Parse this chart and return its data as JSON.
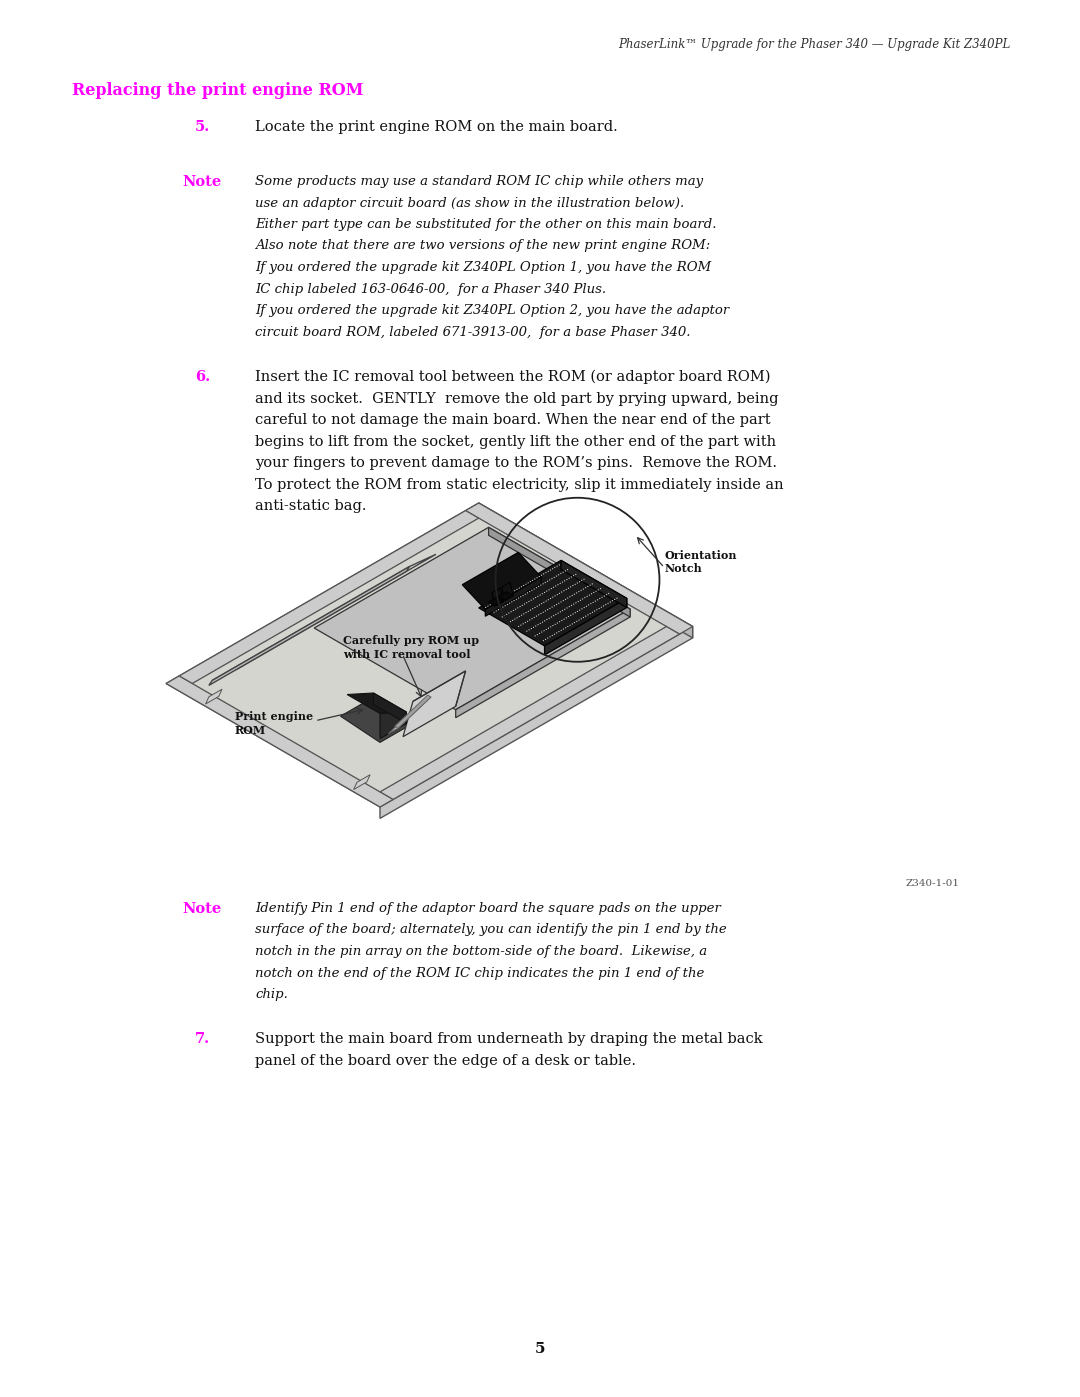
{
  "page_width": 10.8,
  "page_height": 13.97,
  "bg_color": "#ffffff",
  "header_text": "PhaserLink™ Upgrade for the Phaser 340 — Upgrade Kit Z340PL",
  "section_title": "Replacing the print engine ROM",
  "section_title_color": "#FF00FF",
  "step5_num": "5.",
  "step5_num_color": "#FF00FF",
  "step5_text": "Locate the print engine ROM on the main board.",
  "note1_label": "Note",
  "note1_label_color": "#FF00FF",
  "note1_lines": [
    "Some products may use a standard ROM IC chip while others may",
    "use an adaptor circuit board (as show in the illustration below).",
    "Either part type can be substituted for the other on this main board.",
    "Also note that there are two versions of the new print engine ROM:",
    "If you ordered the upgrade kit Z340PL Option 1, you have the ROM",
    "IC chip labeled 163-0646-00,  for a Phaser 340 Plus.",
    "If you ordered the upgrade kit Z340PL Option 2, you have the adaptor",
    "circuit board ROM, labeled 671-3913-00,  for a base Phaser 340."
  ],
  "step6_num": "6.",
  "step6_num_color": "#FF00FF",
  "step6_lines": [
    "Insert the IC removal tool between the ROM (or adaptor board ROM)",
    "and its socket.  GENTLY  remove the old part by prying upward, being",
    "careful to not damage the main board. When the near end of the part",
    "begins to lift from the socket, gently lift the other end of the part with",
    "your fingers to prevent damage to the ROM’s pins.  Remove the ROM.",
    "To protect the ROM from static electricity, slip it immediately inside an",
    "anti-static bag."
  ],
  "diagram_label1_line1": "Carefully pry ROM up",
  "diagram_label1_line2": "with IC removal tool",
  "diagram_label2_line1": "Orientation",
  "diagram_label2_line2": "Notch",
  "diagram_label3_line1": "Print engine",
  "diagram_label3_line2": "ROM",
  "diagram_credit": "Z340-1-01",
  "note2_label": "Note",
  "note2_label_color": "#FF00FF",
  "note2_lines": [
    "Identify Pin 1 end of the adaptor board the square pads on the upper",
    "surface of the board; alternately, you can identify the pin 1 end by the",
    "notch in the pin array on the bottom-side of the board.  Likewise, a",
    "notch on the end of the ROM IC chip indicates the pin 1 end of the",
    "chip."
  ],
  "step7_num": "7.",
  "step7_num_color": "#FF00FF",
  "step7_lines": [
    "Support the main board from underneath by draping the metal back",
    "panel of the board over the edge of a desk or table."
  ],
  "page_num": "5"
}
